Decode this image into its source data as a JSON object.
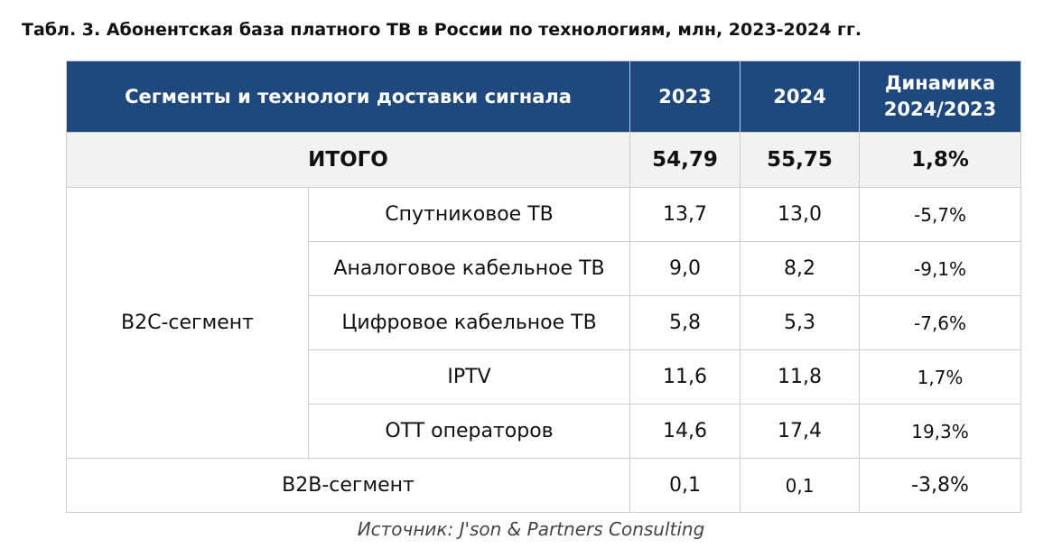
{
  "caption": "Табл. 3. Абонентская база платного ТВ в России по технологиям, млн, 2023-2024 гг.",
  "header": {
    "segments": "Сегменты и технологи доставки сигнала",
    "y2023": "2023",
    "y2024": "2024",
    "dynamics_line1": "Динамика",
    "dynamics_line2": "2024/2023"
  },
  "total": {
    "label": "ИТОГО",
    "v2023": "54,79",
    "v2024": "55,75",
    "dynamics": "1,8%"
  },
  "b2c": {
    "segment": "B2C-сегмент",
    "rows": [
      {
        "tech": "Спутниковое ТВ",
        "v2023": "13,7",
        "v2024": "13,0",
        "dynamics": "-5,7%"
      },
      {
        "tech": "Аналоговое кабельное ТВ",
        "v2023": "9,0",
        "v2024": "8,2",
        "dynamics": "-9,1%"
      },
      {
        "tech": "Цифровое кабельное ТВ",
        "v2023": "5,8",
        "v2024": "5,3",
        "dynamics": "-7,6%"
      },
      {
        "tech": "IPTV",
        "v2023": "11,6",
        "v2024": "11,8",
        "dynamics": "1,7%"
      },
      {
        "tech": "OTT операторов",
        "v2023": "14,6",
        "v2024": "17,4",
        "dynamics": "19,3%"
      }
    ]
  },
  "b2b": {
    "segment": "B2B-сегмент",
    "v2023": "0,1",
    "v2024": "0,1",
    "dynamics": "-3,8%"
  },
  "source": "Источник: J'son & Partners Consulting"
}
